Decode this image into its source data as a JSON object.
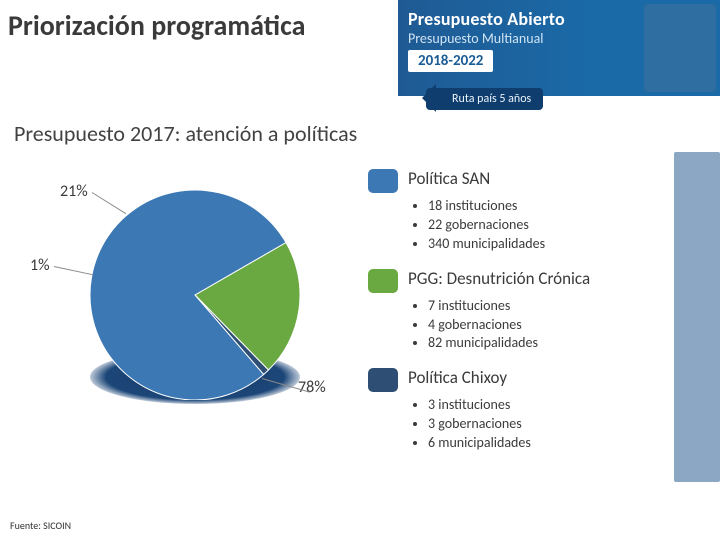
{
  "title": "Priorización programática",
  "subtitle": "Presupuesto 2017: atención a políticas",
  "banner": {
    "line1": "Presupuesto Abierto",
    "line2": "Presupuesto Multianual",
    "years": "2018-2022",
    "ruta": "Ruta país 5 años",
    "bg_color": "#1a5c96",
    "accent_color": "#0f3e6e"
  },
  "pie_chart": {
    "type": "pie",
    "slices": [
      {
        "label": "21%",
        "value": 21,
        "color": "#6aa842",
        "callout_label": "21%"
      },
      {
        "label": "1%",
        "value": 1,
        "color": "#2e4f73",
        "callout_label": "1%"
      },
      {
        "label": "78%",
        "value": 78,
        "color": "#3c78b4",
        "callout_label": "78%"
      }
    ],
    "start_angle_deg": -30,
    "radius": 105,
    "depth_color": "#1c4678",
    "stroke": "#ffffff",
    "stroke_width": 1
  },
  "legend": [
    {
      "swatch_color": "#3c78b4",
      "title": "Política SAN",
      "bullets": [
        "18 instituciones",
        "22 gobernaciones",
        "340 municipalidades"
      ]
    },
    {
      "swatch_color": "#6aa842",
      "title": "PGG: Desnutrición Crónica",
      "bullets": [
        "7 instituciones",
        "4 gobernaciones",
        "82 municipalidades"
      ]
    },
    {
      "swatch_color": "#2e4f73",
      "title": "Política Chixoy",
      "bullets": [
        "3 instituciones",
        "3 gobernaciones",
        "6 municipalidades"
      ]
    }
  ],
  "source": "Fuente: SICOIN",
  "colors": {
    "title_text": "#3a3a3a",
    "body_text": "#3a3a3a",
    "background": "#ffffff"
  },
  "typography": {
    "title_fontsize": 28,
    "subtitle_fontsize": 22,
    "legend_title_fontsize": 17,
    "bullet_fontsize": 14,
    "source_fontsize": 10,
    "font_family": "Calibri"
  }
}
